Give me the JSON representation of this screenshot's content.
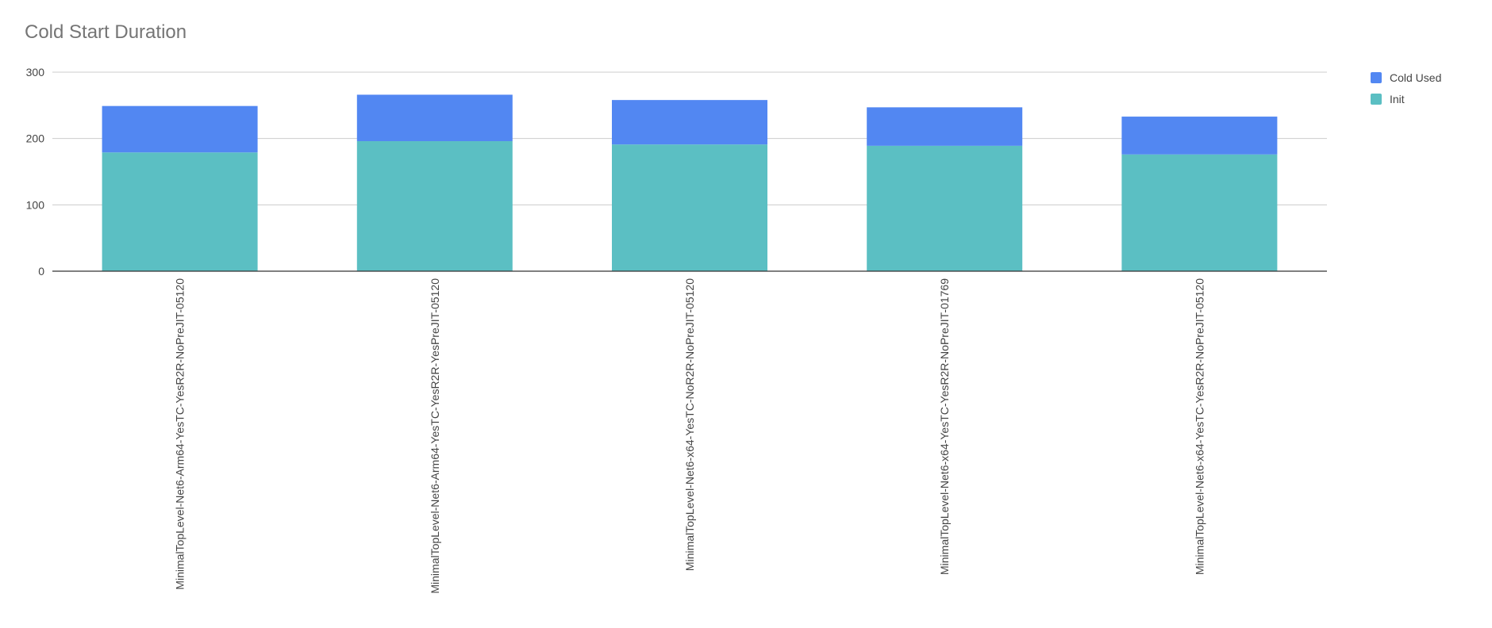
{
  "chart_data": {
    "type": "bar",
    "stacked": true,
    "title": "Cold Start Duration",
    "xlabel": "",
    "ylabel": "",
    "ylim": [
      0,
      300
    ],
    "yticks": [
      0,
      100,
      200,
      300
    ],
    "grid": true,
    "legend_position": "right",
    "categories": [
      "MinimalTopLevel-Net6-Arm64-YesTC-YesR2R-NoPreJIT-05120",
      "MinimalTopLevel-Net6-Arm64-YesTC-YesR2R-YesPreJIT-05120",
      "MinimalTopLevel-Net6-x64-YesTC-NoR2R-NoPreJIT-05120",
      "MinimalTopLevel-Net6-x64-YesTC-YesR2R-NoPreJIT-01769",
      "MinimalTopLevel-Net6-x64-YesTC-YesR2R-NoPreJIT-05120"
    ],
    "series": [
      {
        "name": "Init",
        "color": "#5bbfc3",
        "values": [
          179,
          196,
          191,
          189,
          176
        ]
      },
      {
        "name": "Cold Used",
        "color": "#5287f2",
        "values": [
          70,
          70,
          67,
          58,
          57
        ]
      }
    ],
    "legend_order": [
      "Cold Used",
      "Init"
    ],
    "colors": {
      "grid": "#cccccc",
      "axis": "#333333",
      "tick_text": "#444444",
      "title_text": "#757575"
    }
  }
}
